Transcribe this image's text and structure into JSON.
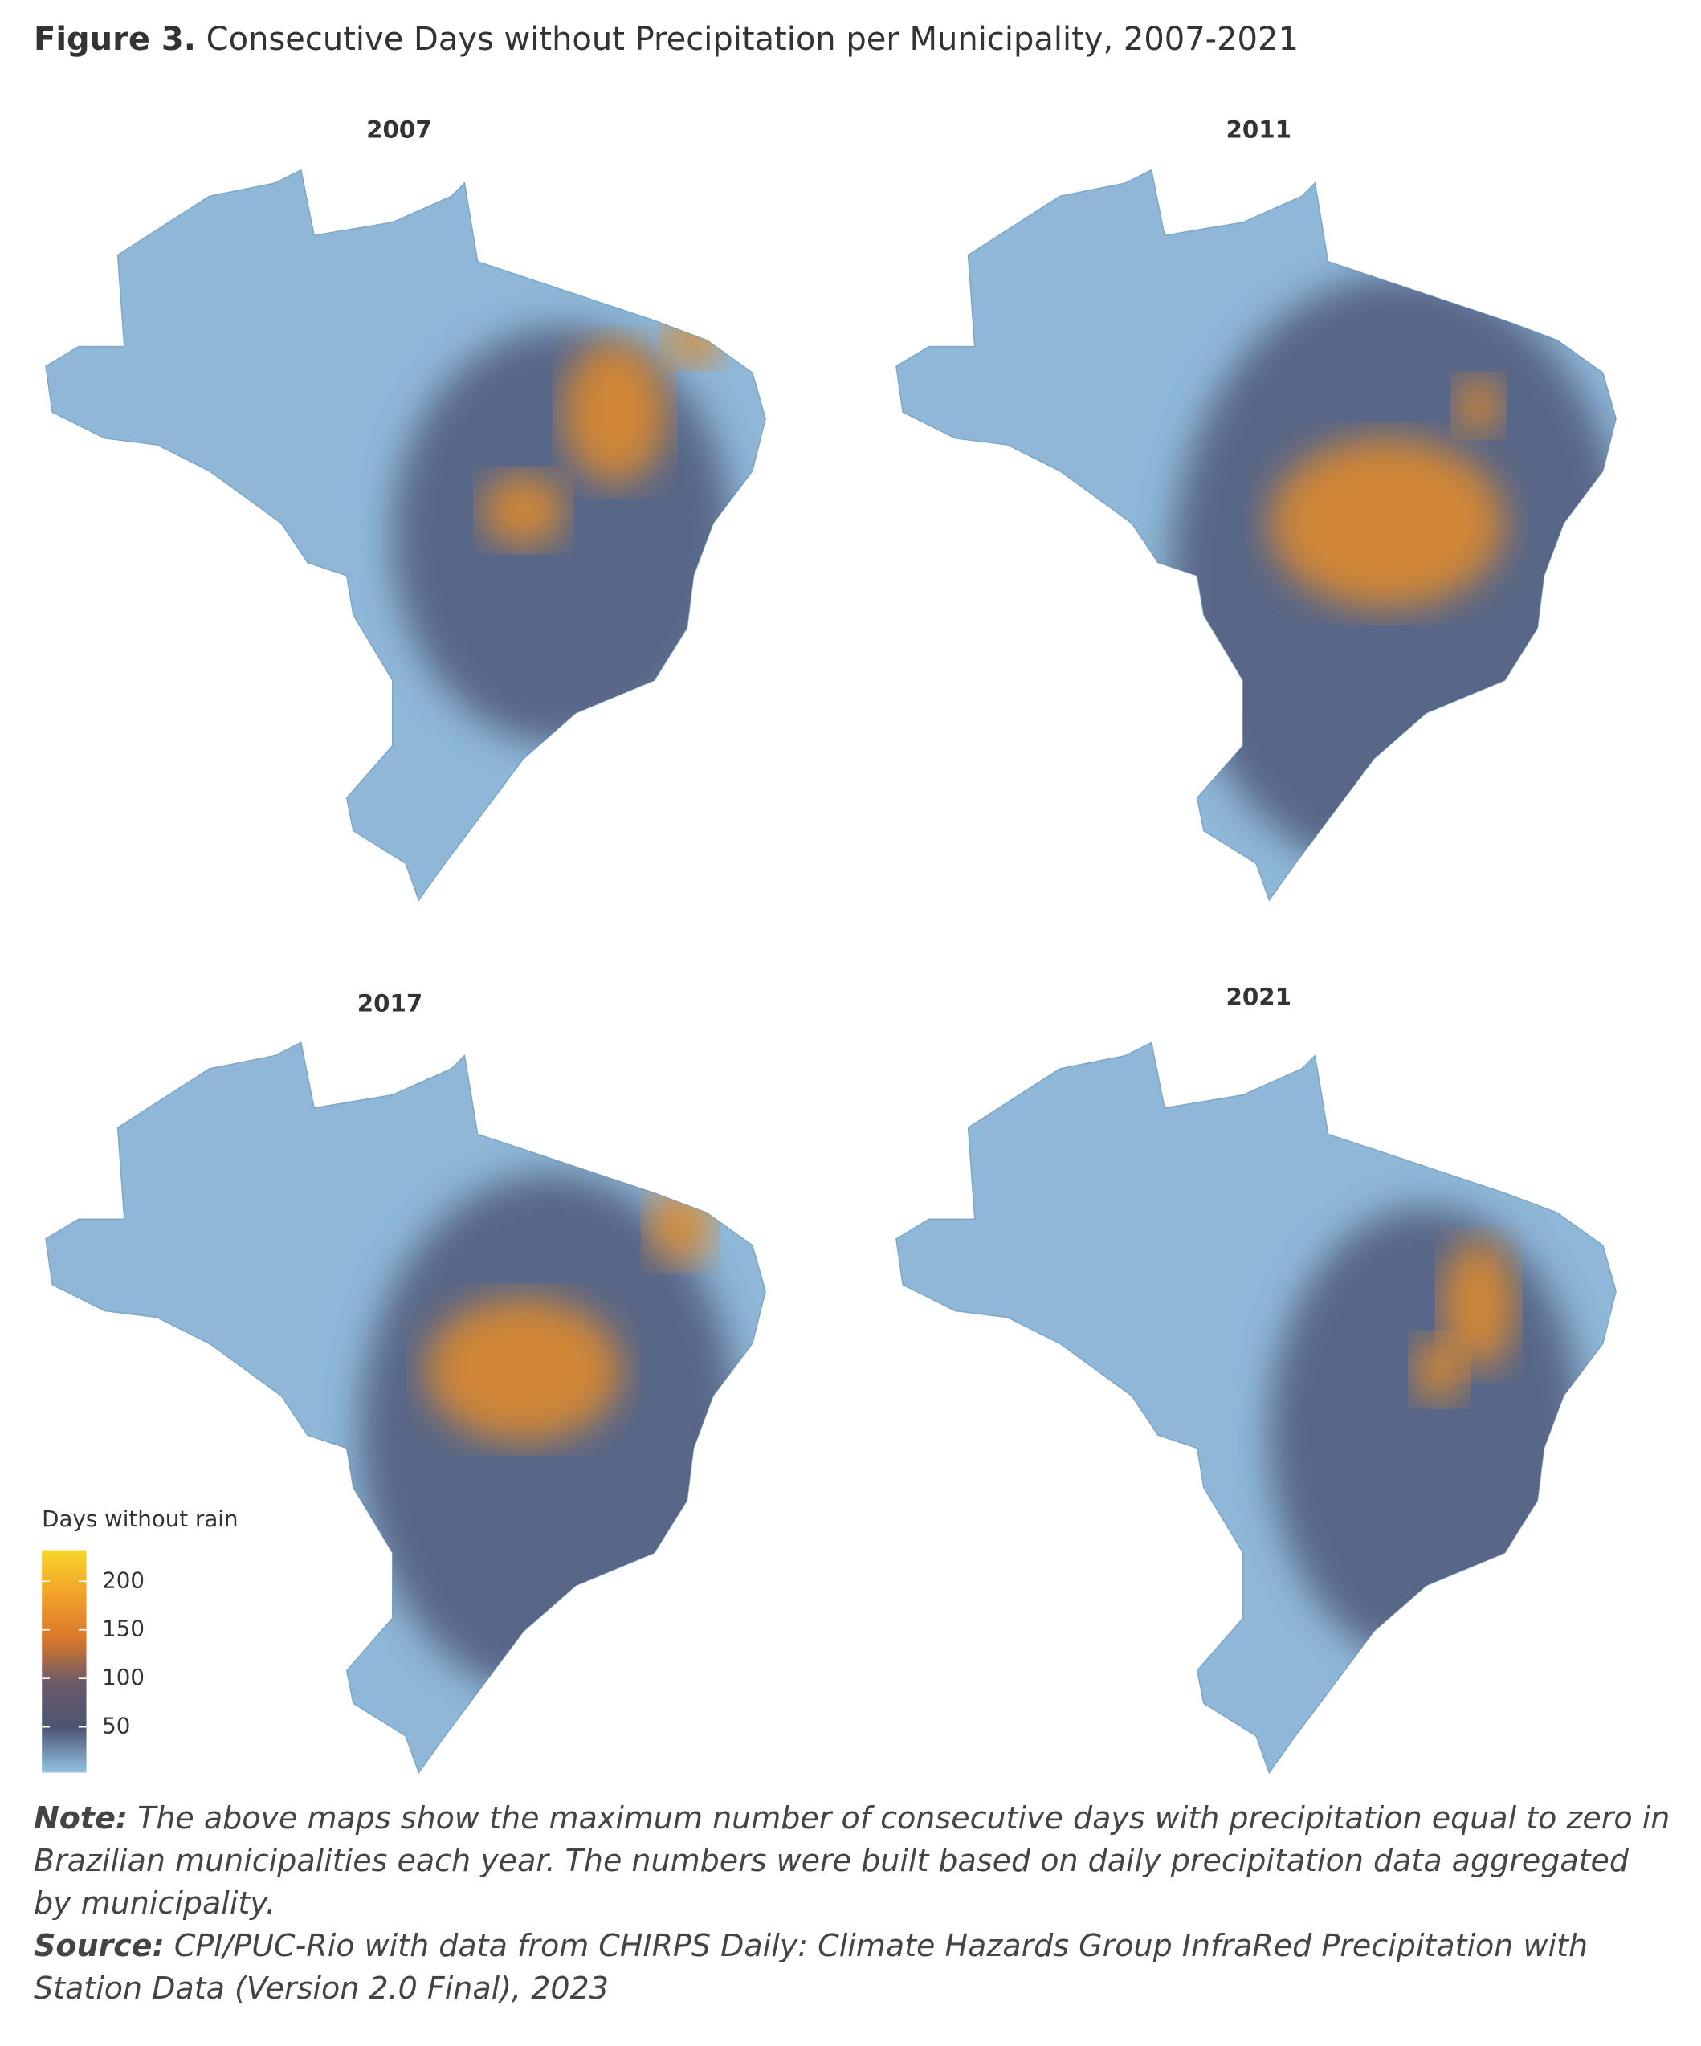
{
  "header": {
    "label": "Figure 3.",
    "text": "Consecutive Days without Precipitation per Municipality, 2007-2021"
  },
  "maps": [
    {
      "title": "2007"
    },
    {
      "title": "2011"
    },
    {
      "title": "2017"
    },
    {
      "title": "2021"
    }
  ],
  "legend": {
    "title": "Days without rain",
    "range": [
      3,
      232
    ],
    "ticks": [
      50,
      100,
      150,
      200
    ],
    "colors": [
      "#93c3e3",
      "#4c5573",
      "#6a5a6a",
      "#d9772a",
      "#f2a12a",
      "#f7d52a"
    ]
  },
  "note": {
    "label": "Note:",
    "text": "The above maps show the maximum number of consecutive days with precipitation equal to zero in Brazilian municipalities each year. The numbers were built based on daily precipitation data aggregated by municipality."
  },
  "source": {
    "label": "Source:",
    "text": "CPI/PUC-Rio with data from CHIRPS Daily: Climate Hazards Group InfraRed Precipitation with Station Data (Version 2.0 Final), 2023"
  }
}
